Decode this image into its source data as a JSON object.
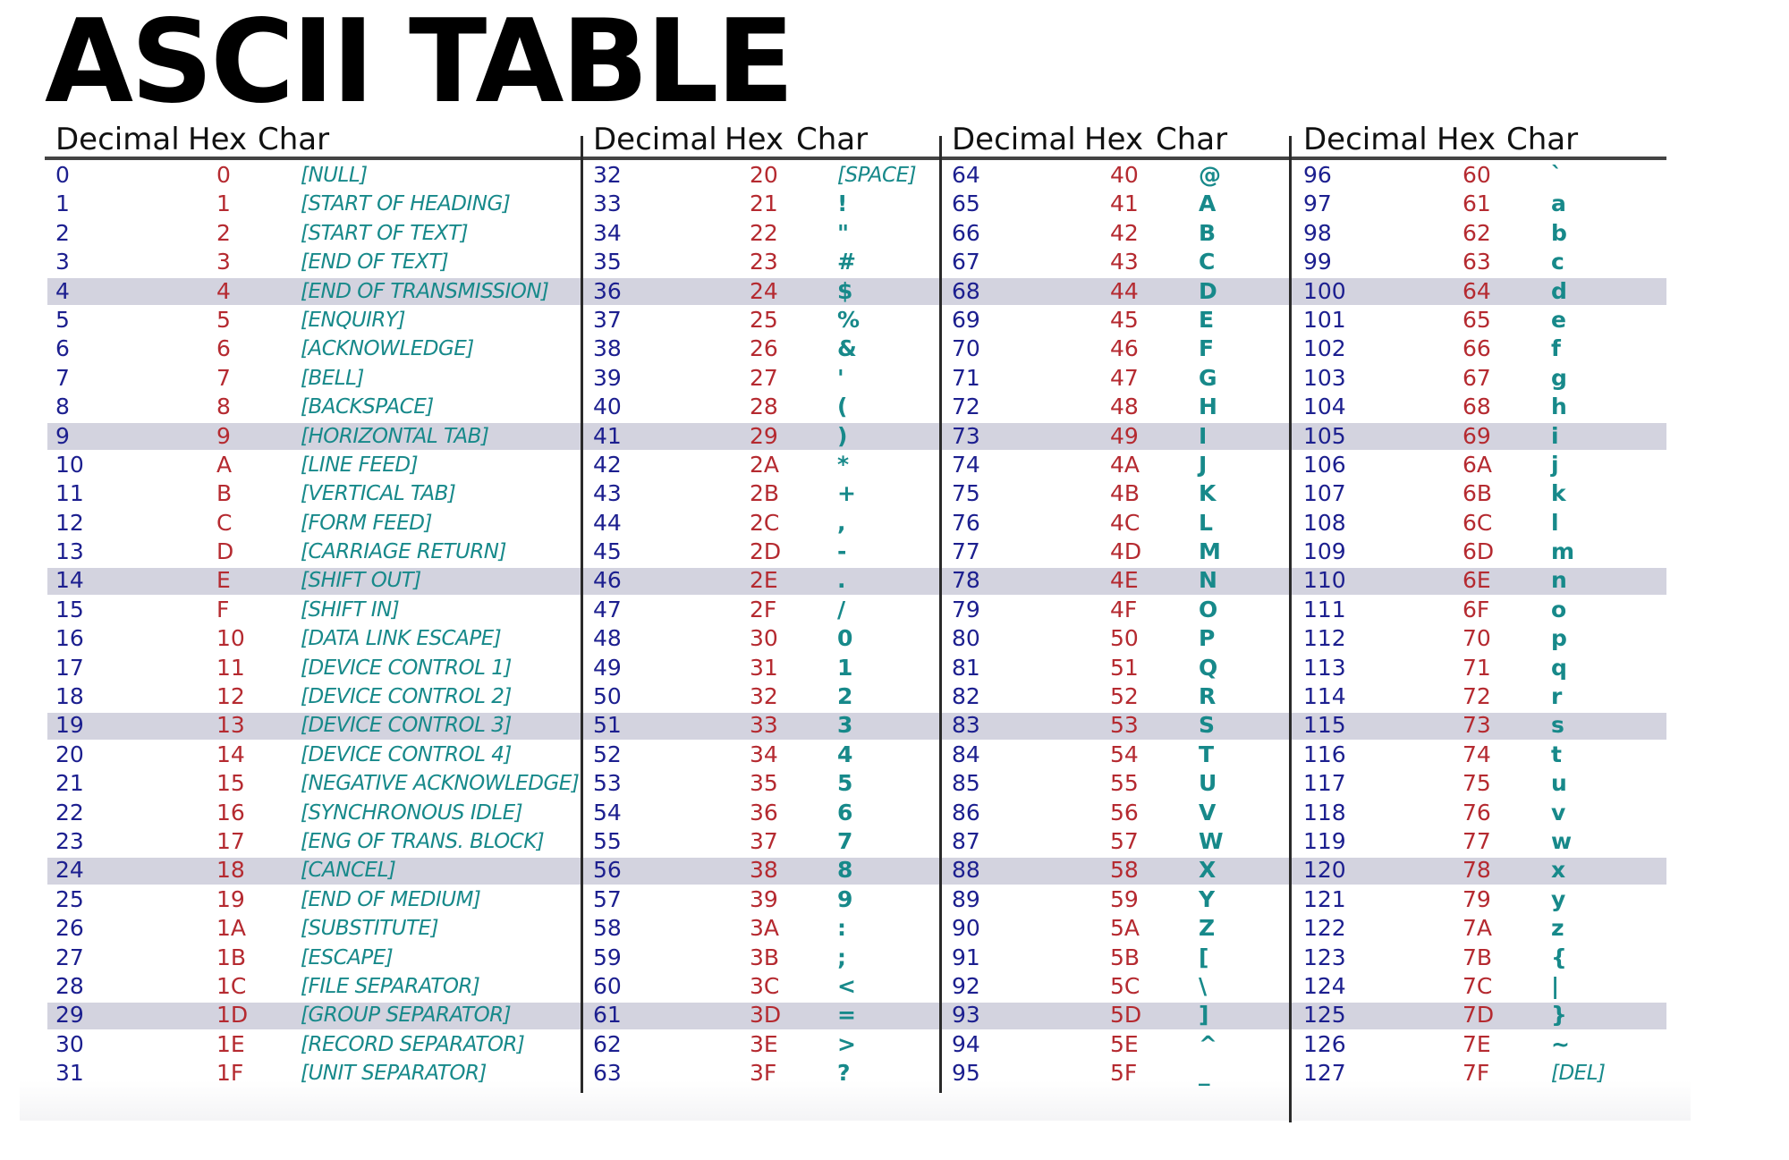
{
  "title": "ASCII TABLE",
  "headers": {
    "decimal": "Decimal",
    "hex": "Hex",
    "char": "Char"
  },
  "columns": [
    {
      "rows": [
        {
          "dec": "0",
          "hex": "0",
          "char": "[NULL]"
        },
        {
          "dec": "1",
          "hex": "1",
          "char": "[START OF HEADING]"
        },
        {
          "dec": "2",
          "hex": "2",
          "char": "[START OF TEXT]"
        },
        {
          "dec": "3",
          "hex": "3",
          "char": "[END OF TEXT]"
        },
        {
          "dec": "4",
          "hex": "4",
          "char": "[END OF TRANSMISSION]"
        },
        {
          "dec": "5",
          "hex": "5",
          "char": "[ENQUIRY]"
        },
        {
          "dec": "6",
          "hex": "6",
          "char": "[ACKNOWLEDGE]"
        },
        {
          "dec": "7",
          "hex": "7",
          "char": "[BELL]"
        },
        {
          "dec": "8",
          "hex": "8",
          "char": "[BACKSPACE]"
        },
        {
          "dec": "9",
          "hex": "9",
          "char": "[HORIZONTAL TAB]"
        },
        {
          "dec": "10",
          "hex": "A",
          "char": "[LINE FEED]"
        },
        {
          "dec": "11",
          "hex": "B",
          "char": "[VERTICAL TAB]"
        },
        {
          "dec": "12",
          "hex": "C",
          "char": "[FORM FEED]"
        },
        {
          "dec": "13",
          "hex": "D",
          "char": "[CARRIAGE RETURN]"
        },
        {
          "dec": "14",
          "hex": "E",
          "char": "[SHIFT OUT]"
        },
        {
          "dec": "15",
          "hex": "F",
          "char": "[SHIFT IN]"
        },
        {
          "dec": "16",
          "hex": "10",
          "char": "[DATA LINK ESCAPE]"
        },
        {
          "dec": "17",
          "hex": "11",
          "char": "[DEVICE CONTROL 1]"
        },
        {
          "dec": "18",
          "hex": "12",
          "char": "[DEVICE CONTROL 2]"
        },
        {
          "dec": "19",
          "hex": "13",
          "char": "[DEVICE CONTROL 3]"
        },
        {
          "dec": "20",
          "hex": "14",
          "char": "[DEVICE CONTROL 4]"
        },
        {
          "dec": "21",
          "hex": "15",
          "char": "[NEGATIVE ACKNOWLEDGE]"
        },
        {
          "dec": "22",
          "hex": "16",
          "char": "[SYNCHRONOUS IDLE]"
        },
        {
          "dec": "23",
          "hex": "17",
          "char": "[ENG OF TRANS. BLOCK]"
        },
        {
          "dec": "24",
          "hex": "18",
          "char": "[CANCEL]"
        },
        {
          "dec": "25",
          "hex": "19",
          "char": "[END OF MEDIUM]"
        },
        {
          "dec": "26",
          "hex": "1A",
          "char": "[SUBSTITUTE]"
        },
        {
          "dec": "27",
          "hex": "1B",
          "char": "[ESCAPE]"
        },
        {
          "dec": "28",
          "hex": "1C",
          "char": "[FILE SEPARATOR]"
        },
        {
          "dec": "29",
          "hex": "1D",
          "char": "[GROUP SEPARATOR]"
        },
        {
          "dec": "30",
          "hex": "1E",
          "char": "[RECORD SEPARATOR]"
        },
        {
          "dec": "31",
          "hex": "1F",
          "char": "[UNIT SEPARATOR]"
        }
      ]
    },
    {
      "rows": [
        {
          "dec": "32",
          "hex": "20",
          "char": "[SPACE]"
        },
        {
          "dec": "33",
          "hex": "21",
          "char": "!"
        },
        {
          "dec": "34",
          "hex": "22",
          "char": "\""
        },
        {
          "dec": "35",
          "hex": "23",
          "char": "#"
        },
        {
          "dec": "36",
          "hex": "24",
          "char": "$"
        },
        {
          "dec": "37",
          "hex": "25",
          "char": "%"
        },
        {
          "dec": "38",
          "hex": "26",
          "char": "&"
        },
        {
          "dec": "39",
          "hex": "27",
          "char": "'"
        },
        {
          "dec": "40",
          "hex": "28",
          "char": "("
        },
        {
          "dec": "41",
          "hex": "29",
          "char": ")"
        },
        {
          "dec": "42",
          "hex": "2A",
          "char": "*"
        },
        {
          "dec": "43",
          "hex": "2B",
          "char": "+"
        },
        {
          "dec": "44",
          "hex": "2C",
          "char": ","
        },
        {
          "dec": "45",
          "hex": "2D",
          "char": "-"
        },
        {
          "dec": "46",
          "hex": "2E",
          "char": "."
        },
        {
          "dec": "47",
          "hex": "2F",
          "char": "/"
        },
        {
          "dec": "48",
          "hex": "30",
          "char": "0"
        },
        {
          "dec": "49",
          "hex": "31",
          "char": "1"
        },
        {
          "dec": "50",
          "hex": "32",
          "char": "2"
        },
        {
          "dec": "51",
          "hex": "33",
          "char": "3"
        },
        {
          "dec": "52",
          "hex": "34",
          "char": "4"
        },
        {
          "dec": "53",
          "hex": "35",
          "char": "5"
        },
        {
          "dec": "54",
          "hex": "36",
          "char": "6"
        },
        {
          "dec": "55",
          "hex": "37",
          "char": "7"
        },
        {
          "dec": "56",
          "hex": "38",
          "char": "8"
        },
        {
          "dec": "57",
          "hex": "39",
          "char": "9"
        },
        {
          "dec": "58",
          "hex": "3A",
          "char": ":"
        },
        {
          "dec": "59",
          "hex": "3B",
          "char": ";"
        },
        {
          "dec": "60",
          "hex": "3C",
          "char": "<"
        },
        {
          "dec": "61",
          "hex": "3D",
          "char": "="
        },
        {
          "dec": "62",
          "hex": "3E",
          "char": ">"
        },
        {
          "dec": "63",
          "hex": "3F",
          "char": "?"
        }
      ]
    },
    {
      "rows": [
        {
          "dec": "64",
          "hex": "40",
          "char": "@"
        },
        {
          "dec": "65",
          "hex": "41",
          "char": "A"
        },
        {
          "dec": "66",
          "hex": "42",
          "char": "B"
        },
        {
          "dec": "67",
          "hex": "43",
          "char": "C"
        },
        {
          "dec": "68",
          "hex": "44",
          "char": "D"
        },
        {
          "dec": "69",
          "hex": "45",
          "char": "E"
        },
        {
          "dec": "70",
          "hex": "46",
          "char": "F"
        },
        {
          "dec": "71",
          "hex": "47",
          "char": "G"
        },
        {
          "dec": "72",
          "hex": "48",
          "char": "H"
        },
        {
          "dec": "73",
          "hex": "49",
          "char": "I"
        },
        {
          "dec": "74",
          "hex": "4A",
          "char": "J"
        },
        {
          "dec": "75",
          "hex": "4B",
          "char": "K"
        },
        {
          "dec": "76",
          "hex": "4C",
          "char": "L"
        },
        {
          "dec": "77",
          "hex": "4D",
          "char": "M"
        },
        {
          "dec": "78",
          "hex": "4E",
          "char": "N"
        },
        {
          "dec": "79",
          "hex": "4F",
          "char": "O"
        },
        {
          "dec": "80",
          "hex": "50",
          "char": "P"
        },
        {
          "dec": "81",
          "hex": "51",
          "char": "Q"
        },
        {
          "dec": "82",
          "hex": "52",
          "char": "R"
        },
        {
          "dec": "83",
          "hex": "53",
          "char": "S"
        },
        {
          "dec": "84",
          "hex": "54",
          "char": "T"
        },
        {
          "dec": "85",
          "hex": "55",
          "char": "U"
        },
        {
          "dec": "86",
          "hex": "56",
          "char": "V"
        },
        {
          "dec": "87",
          "hex": "57",
          "char": "W"
        },
        {
          "dec": "88",
          "hex": "58",
          "char": "X"
        },
        {
          "dec": "89",
          "hex": "59",
          "char": "Y"
        },
        {
          "dec": "90",
          "hex": "5A",
          "char": "Z"
        },
        {
          "dec": "91",
          "hex": "5B",
          "char": "["
        },
        {
          "dec": "92",
          "hex": "5C",
          "char": "\\"
        },
        {
          "dec": "93",
          "hex": "5D",
          "char": "]"
        },
        {
          "dec": "94",
          "hex": "5E",
          "char": "^"
        },
        {
          "dec": "95",
          "hex": "5F",
          "char": "_"
        }
      ]
    },
    {
      "rows": [
        {
          "dec": "96",
          "hex": "60",
          "char": "`"
        },
        {
          "dec": "97",
          "hex": "61",
          "char": "a"
        },
        {
          "dec": "98",
          "hex": "62",
          "char": "b"
        },
        {
          "dec": "99",
          "hex": "63",
          "char": "c"
        },
        {
          "dec": "100",
          "hex": "64",
          "char": "d"
        },
        {
          "dec": "101",
          "hex": "65",
          "char": "e"
        },
        {
          "dec": "102",
          "hex": "66",
          "char": "f"
        },
        {
          "dec": "103",
          "hex": "67",
          "char": "g"
        },
        {
          "dec": "104",
          "hex": "68",
          "char": "h"
        },
        {
          "dec": "105",
          "hex": "69",
          "char": "i"
        },
        {
          "dec": "106",
          "hex": "6A",
          "char": "j"
        },
        {
          "dec": "107",
          "hex": "6B",
          "char": "k"
        },
        {
          "dec": "108",
          "hex": "6C",
          "char": "l"
        },
        {
          "dec": "109",
          "hex": "6D",
          "char": "m"
        },
        {
          "dec": "110",
          "hex": "6E",
          "char": "n"
        },
        {
          "dec": "111",
          "hex": "6F",
          "char": "o"
        },
        {
          "dec": "112",
          "hex": "70",
          "char": "p"
        },
        {
          "dec": "113",
          "hex": "71",
          "char": "q"
        },
        {
          "dec": "114",
          "hex": "72",
          "char": "r"
        },
        {
          "dec": "115",
          "hex": "73",
          "char": "s"
        },
        {
          "dec": "116",
          "hex": "74",
          "char": "t"
        },
        {
          "dec": "117",
          "hex": "75",
          "char": "u"
        },
        {
          "dec": "118",
          "hex": "76",
          "char": "v"
        },
        {
          "dec": "119",
          "hex": "77",
          "char": "w"
        },
        {
          "dec": "120",
          "hex": "78",
          "char": "x"
        },
        {
          "dec": "121",
          "hex": "79",
          "char": "y"
        },
        {
          "dec": "122",
          "hex": "7A",
          "char": "z"
        },
        {
          "dec": "123",
          "hex": "7B",
          "char": "{"
        },
        {
          "dec": "124",
          "hex": "7C",
          "char": "|"
        },
        {
          "dec": "125",
          "hex": "7D",
          "char": "}"
        },
        {
          "dec": "126",
          "hex": "7E",
          "char": "~"
        },
        {
          "dec": "127",
          "hex": "7F",
          "char": "[DEL]"
        }
      ]
    }
  ],
  "colors": {
    "decimal": "#1c1f8f",
    "hex": "#b52a30",
    "char": "#17898a",
    "stripe": "#d3d3df"
  }
}
